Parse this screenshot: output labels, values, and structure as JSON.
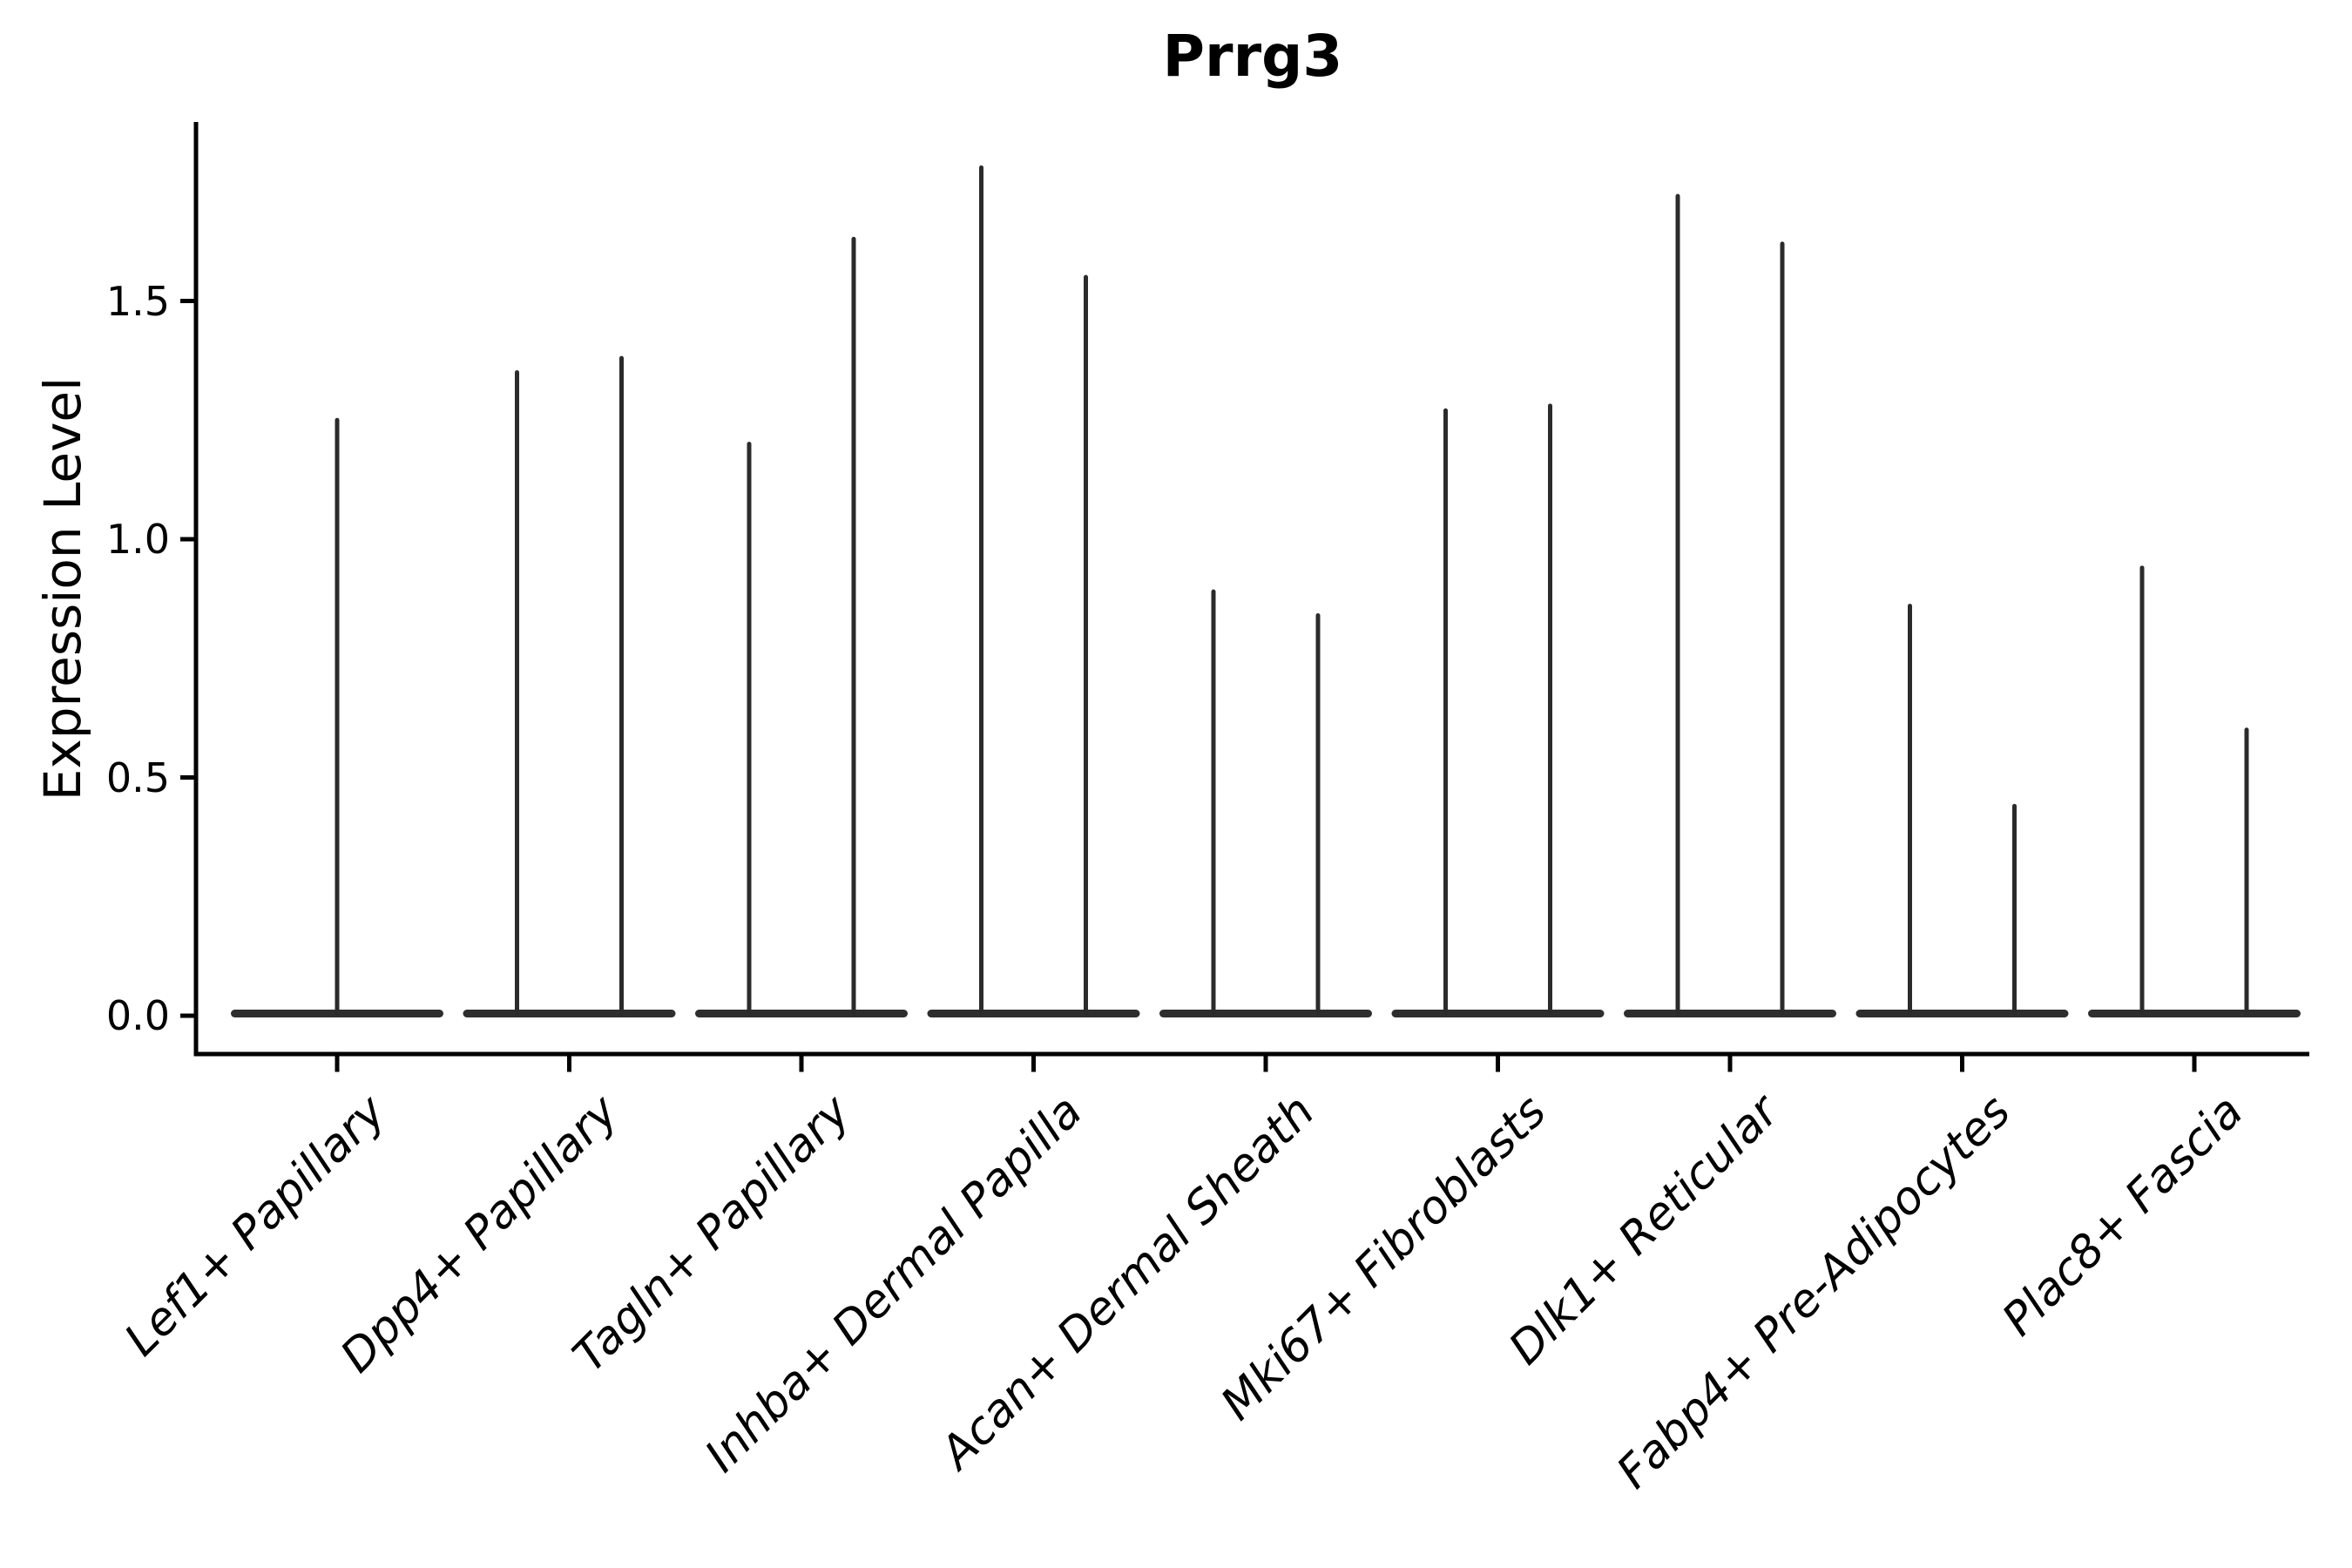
{
  "chart_data": {
    "type": "violin",
    "title": "Prrg3",
    "xlabel": "",
    "ylabel": "Expression Level",
    "ylim": [
      -0.08,
      1.88
    ],
    "grid": false,
    "legend": "none",
    "yticks": [
      {
        "value": 0.0,
        "label": "0.0"
      },
      {
        "value": 0.5,
        "label": "0.5"
      },
      {
        "value": 1.0,
        "label": "1.0"
      },
      {
        "value": 1.5,
        "label": "1.5"
      }
    ],
    "categories": [
      "Lef1+ Papillary",
      "Dpp4+ Papillary",
      "Tagln+ Papillary",
      "Inhba+ Dermal Papilla",
      "Acan+ Dermal Sheath",
      "Mki67+ Fibroblasts",
      "Dlk1+ Reticular",
      "Fabp4+ Pre-Adipocytes",
      "Plac8+ Fascia"
    ],
    "violins": [
      {
        "category": "Lef1+ Papillary",
        "dodged": false,
        "baseline_value": 0.0,
        "max_values": [
          1.25
        ]
      },
      {
        "category": "Dpp4+ Papillary",
        "dodged": true,
        "baseline_value": 0.0,
        "max_values": [
          1.35,
          1.38
        ]
      },
      {
        "category": "Tagln+ Papillary",
        "dodged": true,
        "baseline_value": 0.0,
        "max_values": [
          1.2,
          1.63
        ]
      },
      {
        "category": "Inhba+ Dermal Papilla",
        "dodged": true,
        "baseline_value": 0.0,
        "max_values": [
          1.78,
          1.55
        ]
      },
      {
        "category": "Acan+ Dermal Sheath",
        "dodged": true,
        "baseline_value": 0.0,
        "max_values": [
          0.89,
          0.84
        ]
      },
      {
        "category": "Mki67+ Fibroblasts",
        "dodged": true,
        "baseline_value": 0.0,
        "max_values": [
          1.27,
          1.28
        ]
      },
      {
        "category": "Dlk1+ Reticular",
        "dodged": true,
        "baseline_value": 0.0,
        "max_values": [
          1.72,
          1.62
        ]
      },
      {
        "category": "Fabp4+ Pre-Adipocytes",
        "dodged": true,
        "baseline_value": 0.0,
        "max_values": [
          0.86,
          0.44
        ]
      },
      {
        "category": "Plac8+ Fascia",
        "dodged": true,
        "baseline_value": 0.0,
        "max_values": [
          0.94,
          0.6
        ]
      }
    ],
    "colors": {
      "violin": "#2b2b2b",
      "violin_body": "#2e2e2e",
      "axis": "#000000",
      "text": "#000000",
      "background": "#ffffff"
    }
  }
}
